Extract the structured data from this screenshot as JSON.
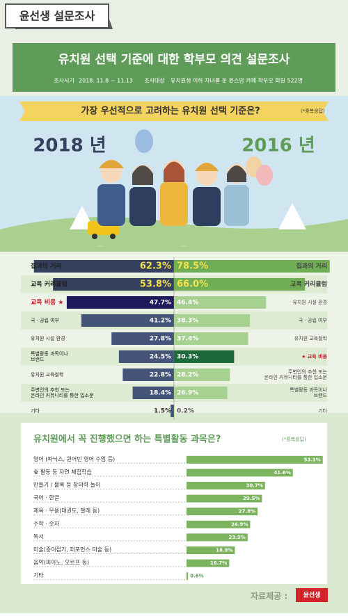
{
  "header": {
    "badge": "윤선생 설문조사",
    "title": "유치원 선택 기준에 대한 학부모 의견 설문조사",
    "period_label": "조사시기",
    "period": "2018. 11.8 ~ 11.13",
    "target_label": "조사대상",
    "target": "유치원생 이하 자녀를 둔 윤스맘 카페 학부모 회원 522명"
  },
  "question1": {
    "text": "가장 우선적으로 고려하는 유치원 선택 기준은?",
    "note": "(*중복응답)"
  },
  "question2": {
    "text": "유치원에서 꼭 진행했으면 하는 특별활동 과목은?",
    "note": "(*중복응답)"
  },
  "footer": {
    "source": "자료제공 :",
    "logo": "윤선생"
  },
  "chart_data": [
    {
      "type": "hbar",
      "title": "2018 년",
      "direction": "left",
      "categories": [
        "집과의 거리",
        "교육 커리큘럼",
        "교육 비용 ★",
        "국 · 공립 여부",
        "유치원 시설 환경",
        "특별활동 과목이나 브랜드",
        "유치원 교육철학",
        "주변인의 추천 또는 온라인 커뮤니티를 통한 입소문",
        "기타"
      ],
      "values": [
        62.3,
        53.8,
        47.7,
        41.2,
        27.8,
        24.5,
        22.8,
        18.4,
        1.5
      ],
      "value_labels": [
        "62.3%",
        "53.8%",
        "47.7%",
        "41.2%",
        "27.8%",
        "24.5%",
        "22.8%",
        "18.4%",
        "1.5%"
      ],
      "colors": [
        "#34405e",
        "#34405e",
        "#1e1a5c",
        "#45557a",
        "#45557a",
        "#45557a",
        "#45557a",
        "#45557a",
        "#45557a"
      ],
      "xlim": [
        0,
        65
      ]
    },
    {
      "type": "hbar",
      "title": "2016 년",
      "direction": "right",
      "categories": [
        "집과의 거리",
        "교육 커리큘럼",
        "유치원 시설 환경",
        "국 · 공립 여부",
        "유치원 교육철학",
        "★ 교육 비용",
        "주변인의 추천 또는 온라인 커뮤니티를 통한 입소문",
        "특별활동 과목이나 브랜드",
        "기타"
      ],
      "values": [
        78.5,
        66.0,
        46.4,
        38.3,
        37.4,
        30.3,
        28.2,
        26.9,
        0.2
      ],
      "value_labels": [
        "78.5%",
        "66.0%",
        "46.4%",
        "38.3%",
        "37.4%",
        "30.3%",
        "28.2%",
        "26.9%",
        "0.2%"
      ],
      "colors": [
        "#6fae55",
        "#6fae55",
        "#a6d191",
        "#a6d191",
        "#a6d191",
        "#1c6a3a",
        "#a6d191",
        "#a6d191",
        "#a6d191"
      ],
      "xlim": [
        0,
        80
      ]
    },
    {
      "type": "hbar",
      "direction": "right",
      "categories": [
        "영어 (파닉스, 원어민 영어 수업 등)",
        "숲 활동 등 자연 체험학습",
        "만들기 / 블록 등 창의력 놀이",
        "국어 · 한글",
        "체육 · 무용(태권도, 발레 등)",
        "수학 · 숫자",
        "독서",
        "미술(종이접기, 퍼포먼스 미술 등)",
        "음악(피아노, 오르프 등)",
        "기타"
      ],
      "values": [
        53.3,
        41.6,
        30.7,
        29.5,
        27.8,
        24.9,
        23.9,
        18.9,
        16.7,
        0.6
      ],
      "value_labels": [
        "53.3%",
        "41.6%",
        "30.7%",
        "29.5%",
        "27.8%",
        "24.9%",
        "23.9%",
        "18.9%",
        "16.7%",
        "0.6%"
      ],
      "colors": [
        "#7bb35f",
        "#7bb35f",
        "#7bb35f",
        "#7bb35f",
        "#7bb35f",
        "#7bb35f",
        "#7bb35f",
        "#7bb35f",
        "#7bb35f",
        "#7bb35f"
      ],
      "xlim": [
        0,
        55
      ]
    }
  ]
}
